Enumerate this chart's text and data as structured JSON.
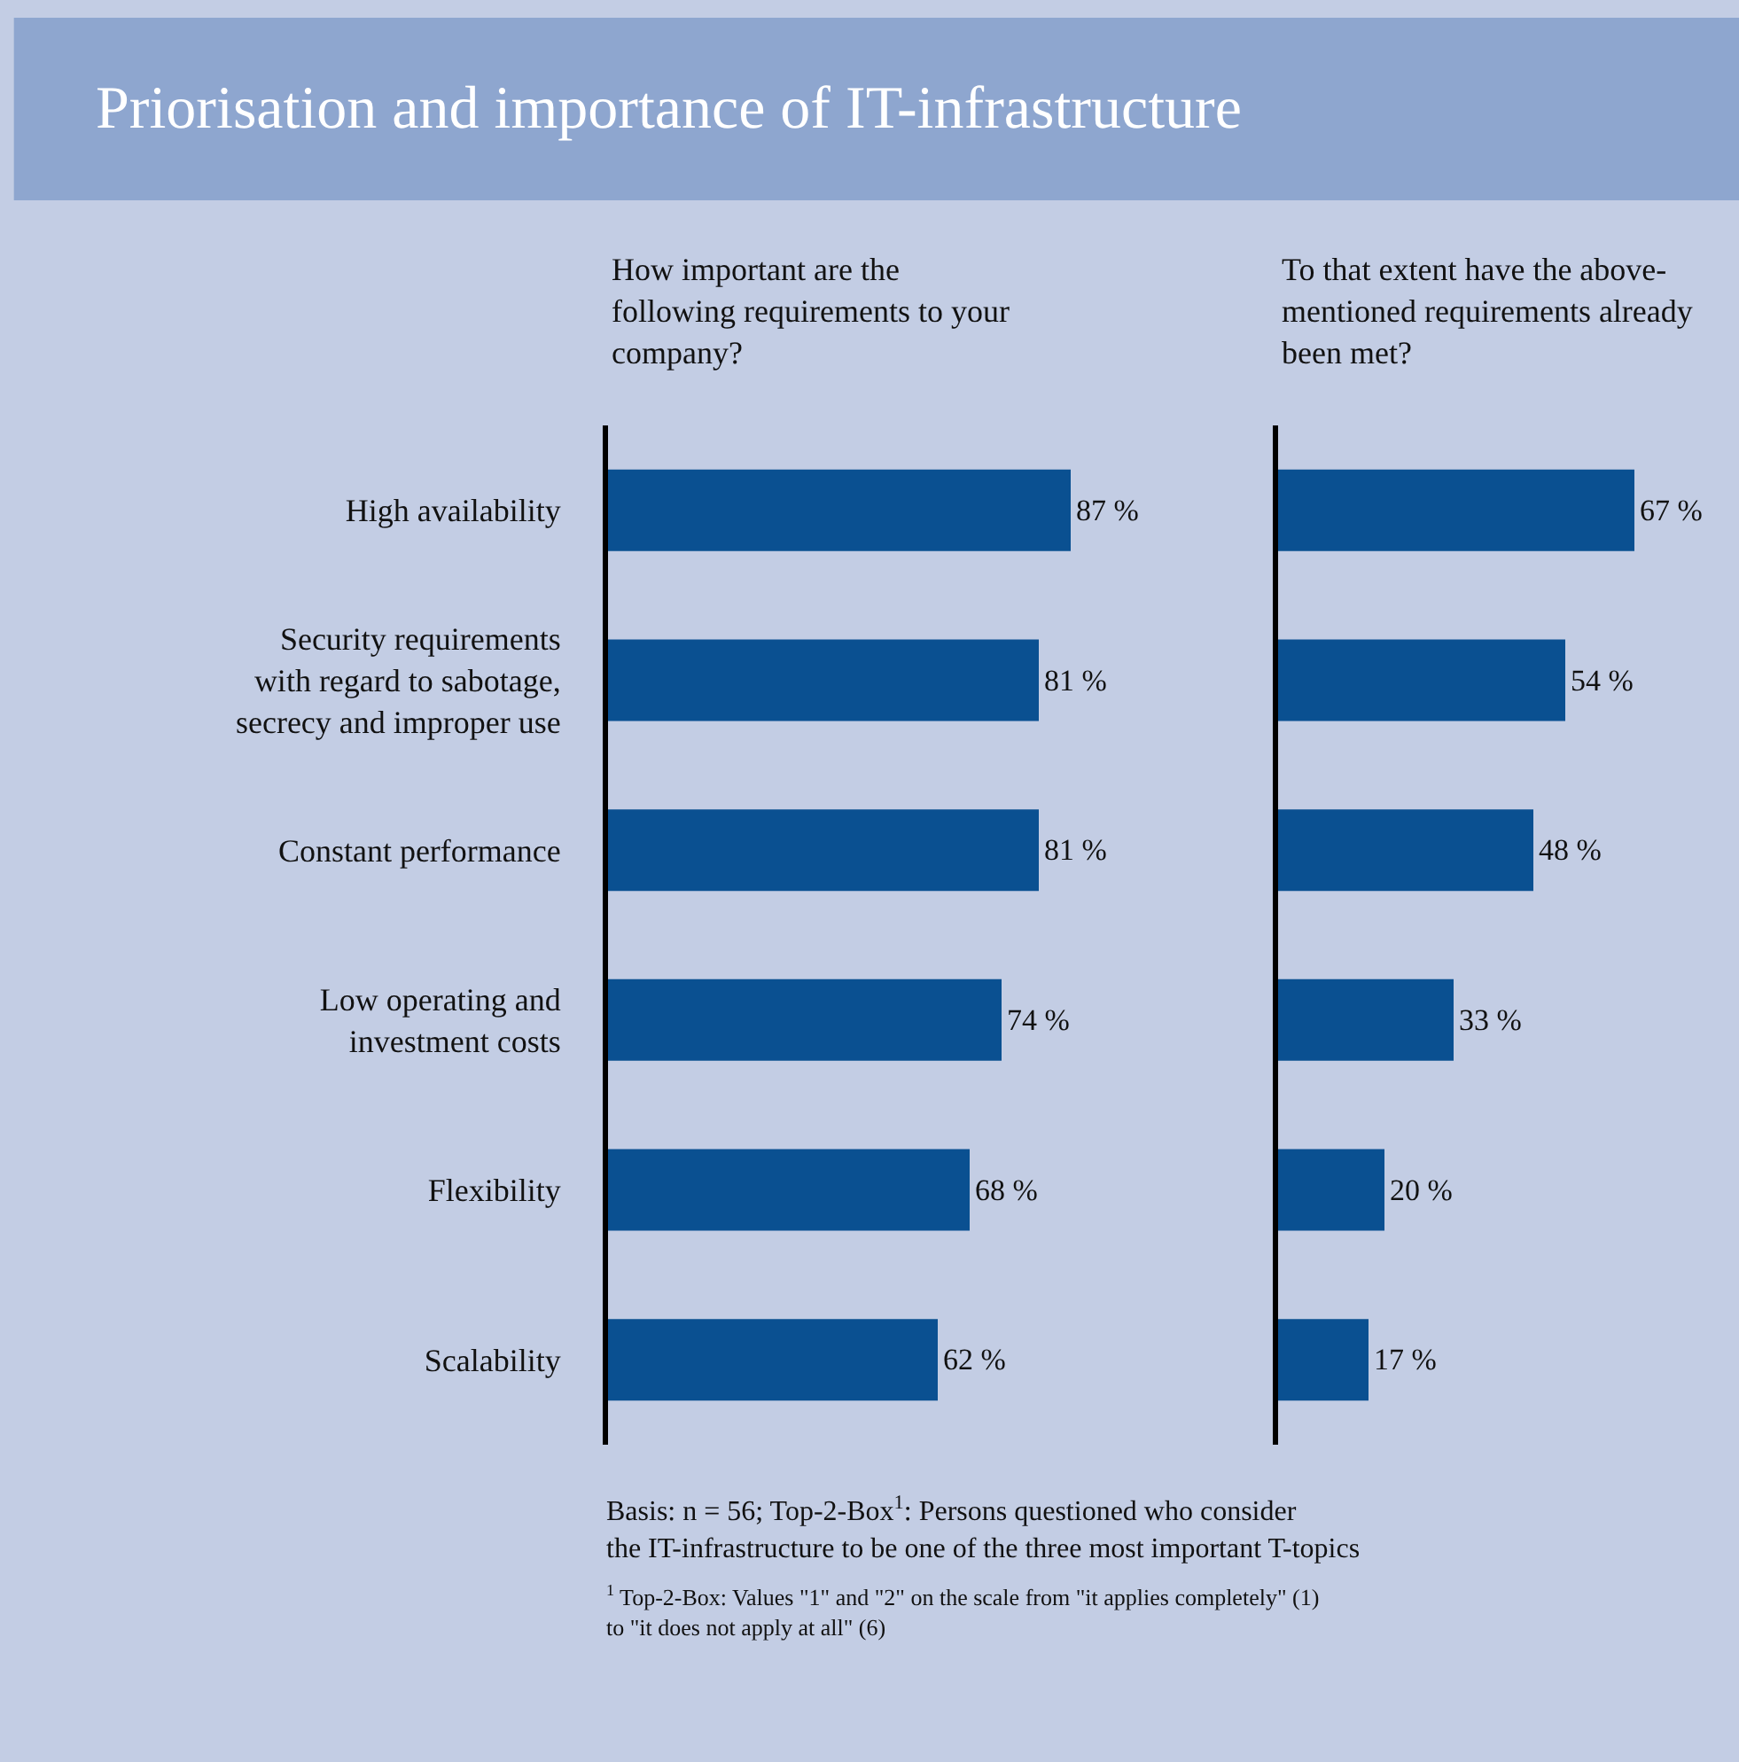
{
  "chart_data": [
    {
      "type": "bar",
      "orientation": "horizontal",
      "title": "Priorisation and importance of IT-infrastructure",
      "subtitle": "How important are the following requirements to your company?",
      "categories": [
        "High availability",
        "Security requirements with regard to sabotage, secrecy and improper use",
        "Constant performance",
        "Low operating and investment costs",
        "Flexibility",
        "Scalability"
      ],
      "values": [
        87,
        81,
        81,
        74,
        68,
        62
      ],
      "value_labels": [
        "87 %",
        "81 %",
        "81 %",
        "74 %",
        "68 %",
        "62 %"
      ],
      "color": "#0a5091",
      "tick_labels": "y",
      "annotations": [
        "Basis: n = 56; Top-2-Box$^{1}$: Persons questioned who consider the IT-infrastructure to be one of the three most important T-topics",
        "$^{1}$ Top-2-Box: Values \"1\" and \"2\" on the scale from \"it applies completely\" (1) to \"it does not apply at all\" (6)"
      ]
    },
    {
      "type": "bar",
      "orientation": "horizontal",
      "subtitle": "To that extent have the above-mentioned requirements already been met?",
      "categories": [
        null,
        null,
        null,
        null,
        null,
        null
      ],
      "values": [
        67,
        54,
        48,
        33,
        20,
        17
      ],
      "value_labels": [
        "67 %",
        "54 %",
        "48 %",
        "33 %",
        "20 %",
        "17 %"
      ],
      "color": "#0a5091",
      "tick_labels": false
    }
  ]
}
